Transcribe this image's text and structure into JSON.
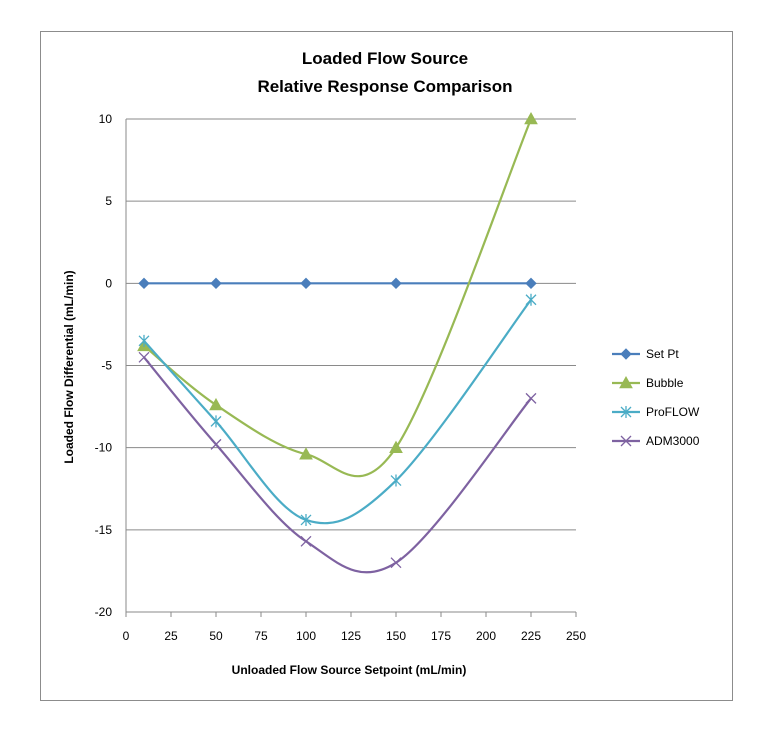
{
  "chart_data": {
    "type": "line",
    "title": "Loaded Flow Source",
    "subtitle": "Relative Response Comparison",
    "xlabel": "Unloaded Flow Source Setpoint (mL/min)",
    "ylabel": "Loaded Flow Differential (mL/min)",
    "xlim": [
      0,
      250
    ],
    "ylim": [
      -20,
      10
    ],
    "xticks": [
      0,
      25,
      50,
      75,
      100,
      125,
      150,
      175,
      200,
      225,
      250
    ],
    "yticks": [
      10,
      5,
      0,
      -5,
      -10,
      -15,
      -20
    ],
    "grid": "horizontal",
    "legend_position": "right",
    "smooth": true,
    "series": [
      {
        "name": "Set Pt",
        "color": "#4a7ebb",
        "marker": "diamond",
        "x": [
          10,
          50,
          100,
          150,
          225
        ],
        "y": [
          0,
          0,
          0,
          0,
          0
        ]
      },
      {
        "name": "Bubble",
        "color": "#98b954",
        "marker": "triangle",
        "x": [
          10,
          50,
          100,
          150,
          225
        ],
        "y": [
          -3.8,
          -7.4,
          -10.4,
          -10.0,
          10.0
        ]
      },
      {
        "name": "ProFLOW",
        "color": "#4bacc6",
        "marker": "star",
        "x": [
          10,
          50,
          100,
          150,
          225
        ],
        "y": [
          -3.5,
          -8.4,
          -14.4,
          -12.0,
          -1.0
        ]
      },
      {
        "name": "ADM3000",
        "color": "#7e62a1",
        "marker": "x",
        "x": [
          10,
          50,
          100,
          150,
          225
        ],
        "y": [
          -4.5,
          -9.8,
          -15.7,
          -17.0,
          -7.0
        ]
      }
    ]
  }
}
